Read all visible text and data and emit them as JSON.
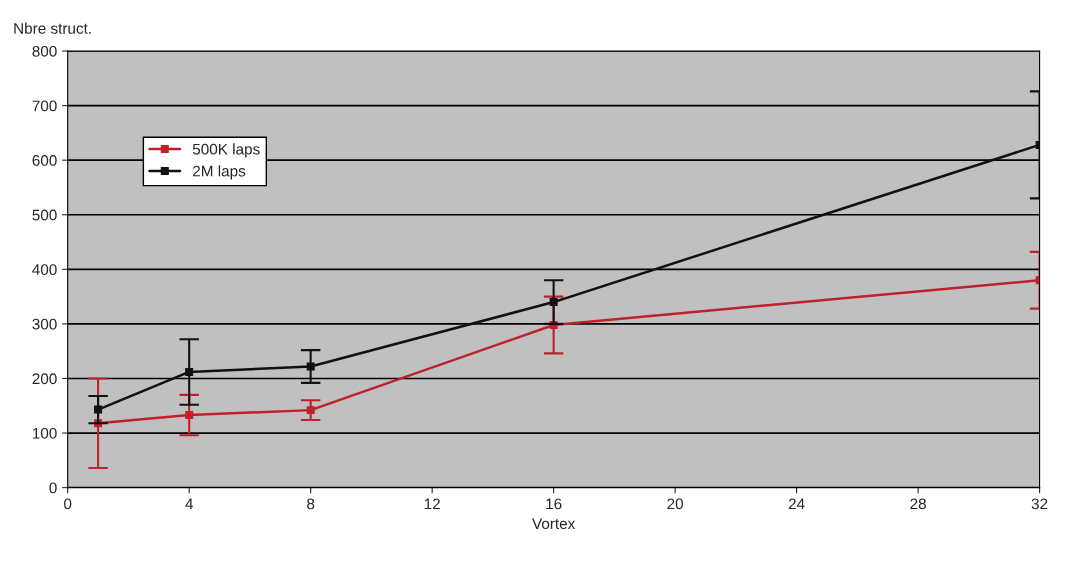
{
  "chart_data": {
    "type": "line",
    "xlabel": "Vortex",
    "ylabel": "Nbre struct.",
    "xlim": [
      0,
      32
    ],
    "xticks": [
      0,
      4,
      8,
      12,
      16,
      20,
      24,
      28,
      32
    ],
    "ylim": [
      0,
      800
    ],
    "yticks": [
      0,
      100,
      200,
      300,
      400,
      500,
      600,
      700,
      800
    ],
    "grid": "y",
    "legend": "top left",
    "marker": "square",
    "series": [
      {
        "name": "500K laps",
        "color": "#c0202a",
        "x": [
          1,
          4,
          8,
          16,
          32
        ],
        "values": [
          118,
          133,
          142,
          298,
          380
        ],
        "errors": [
          82,
          37,
          18,
          52,
          52
        ]
      },
      {
        "name": "2M laps",
        "color": "#111111",
        "x": [
          1,
          4,
          8,
          16,
          32
        ],
        "values": [
          143,
          212,
          222,
          340,
          628
        ],
        "errors": [
          25,
          60,
          30,
          40,
          98
        ]
      }
    ]
  }
}
